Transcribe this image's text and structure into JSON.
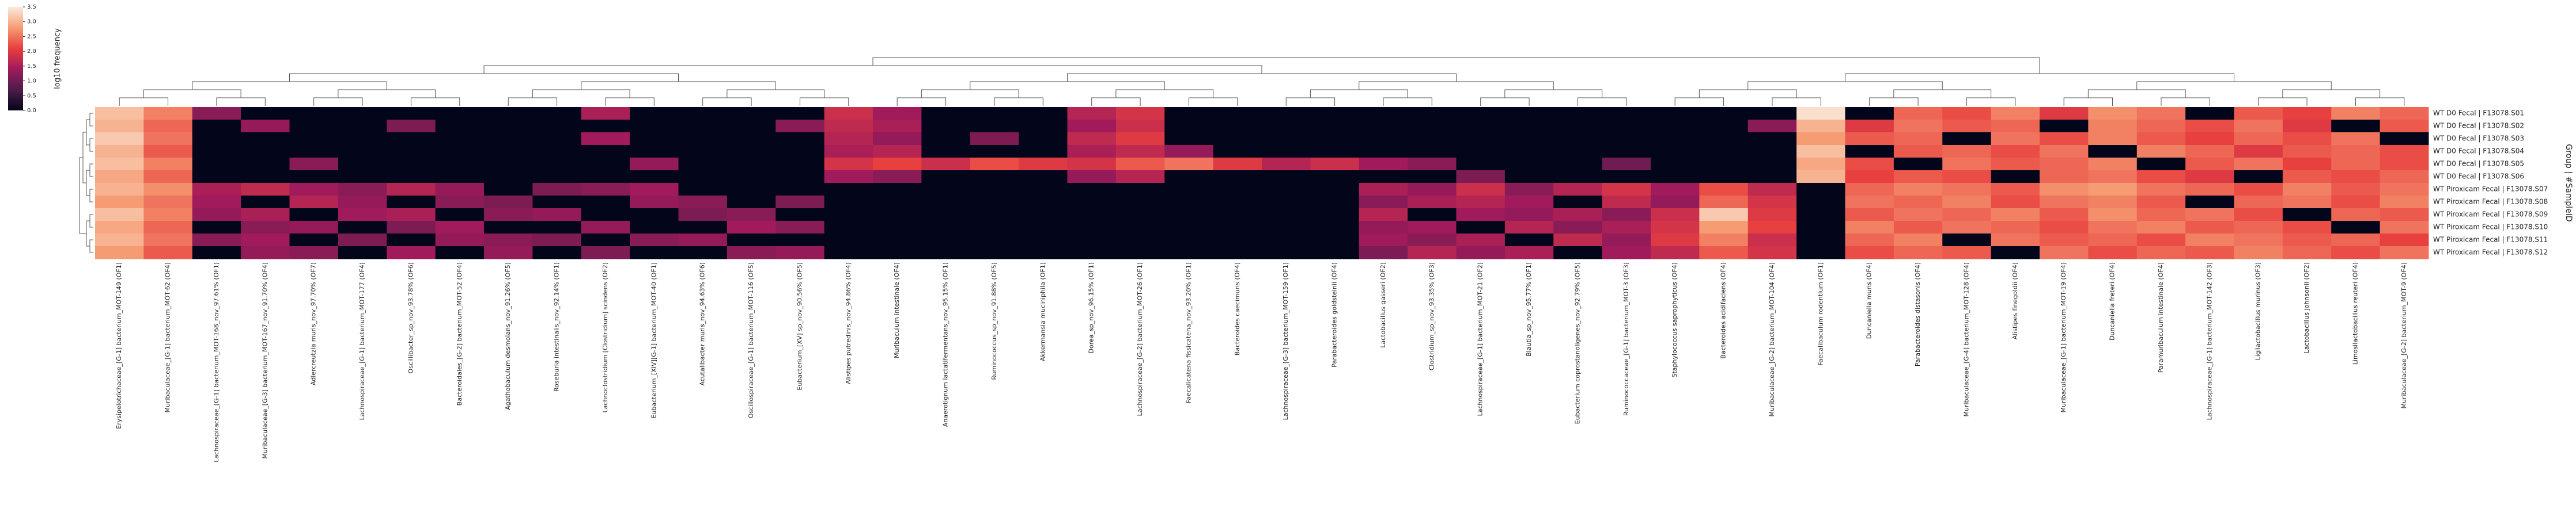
{
  "chart_data": {
    "type": "heatmap",
    "colorbar_label": "log10 frequency",
    "ylabel": "Group | #SampleID",
    "clim": [
      0,
      3.5
    ],
    "cticks": [
      {
        "value": 0,
        "label": "0.0"
      },
      {
        "value": 0.5,
        "label": "0.5"
      },
      {
        "value": 1,
        "label": "1.0"
      },
      {
        "value": 1.5,
        "label": "1.5"
      },
      {
        "value": 2,
        "label": "2.0"
      },
      {
        "value": 2.5,
        "label": "2.5"
      },
      {
        "value": 3,
        "label": "3.0"
      },
      {
        "value": 3.5,
        "label": "3.5"
      }
    ],
    "colormap": [
      "#03051a",
      "#4c1d4b",
      "#a11a5b",
      "#e83f3f",
      "#f69c73",
      "#faebdd"
    ],
    "categories": [
      "Erysipelotrichaceae_[G-1] bacterium_MOT-149 (OF1)",
      "Muribaculaceae_[G-1] bacterium_MOT-62 (OF4)",
      "Lachnospiraceae_[G-1] bacterium_MOT-168_nov_97.61% (OF1)",
      "Muribaculaceae_[G-3] bacterium_MOT-167_nov_91.70% (OF4)",
      "Adlercreutzia muris_nov_97.70% (OF7)",
      "Lachnospiraceae_[G-1] bacterium_MOT-177 (OF4)",
      "Oscillibacter_sp_nov_93.78% (OF6)",
      "Bacteroidales_[G-2] bacterium_MOT-52 (OF4)",
      "Agathobaculum desmolans_nov_91.26% (OF5)",
      "Roseburia intestinalis_nov_92.14% (OF1)",
      "Lachnoclostridium [Clostridium] scindens (OF2)",
      "Eubacterium_[XIV][G-1] bacterium_MOT-40 (OF1)",
      "Acutalibacter muris_nov_94.63% (OF6)",
      "Oscillospiraceae_[G-1] bacterium_MOT-116 (OF5)",
      "Eubacterium_[XV] sp_nov_90.56% (OF5)",
      "Alistipes putredinis_nov_94.86% (OF4)",
      "Muribaculum intestinale (OF4)",
      "Anaerotignum lactatifermentans_nov_95.15% (OF1)",
      "Ruminococcus_sp_nov_91.88% (OF5)",
      "Akkermansia muciniphila (OF1)",
      "Dorea_sp_nov_96.15% (OF1)",
      "Lachnospiraceae_[G-2] bacterium_MOT-26 (OF1)",
      "Faecalicatena fissicatena_nov_93.20% (OF1)",
      "Bacteroides caecimuris (OF4)",
      "Lachnospiraceae_[G-3] bacterium_MOT-159 (OF1)",
      "Parabacteroides goldsteinii (OF4)",
      "Lactobacillus gasseri (OF2)",
      "Clostridium_sp_nov_93.35% (OF3)",
      "Lachnospiraceae_[G-1] bacterium_MOT-21 (OF2)",
      "Blautia_sp_nov_95.77% (OF1)",
      "Eubacterium coprostanoligenes_nov_92.79% (OF5)",
      "Ruminococcaceae_[G-1] bacterium_MOT-3 (OF3)",
      "Staphylococcus saprophyticus (OF4)",
      "Bacteroides acidifaciens (OF4)",
      "Muribaculaceae_[G-2] bacterium_MOT-104 (OF4)",
      "Faecalibaculum rodentium (OF1)",
      "Duncaniella muris (OF4)",
      "Parabacteroides distasonis (OF4)",
      "Muribaculaceae_[G-4] bacterium_MOT-128 (OF4)",
      "Alistipes finegoldii (OF4)",
      "Muribaculaceae_[G-1] bacterium_MOT-19 (OF4)",
      "Duncaniella freteri (OF4)",
      "Paramuribaculum intestinale (OF4)",
      "Lachnospiraceae_[G-1] bacterium_MOT-142 (OF3)",
      "Ligilactobacillus murinus (OF3)",
      "Lactobacillus johnsonii (OF2)",
      "Limosilactobacillus reuteri (OF4)",
      "Muribaculaceae_[G-2] bacterium_MOT-9 (OF4)"
    ],
    "series": [
      {
        "name": "WT D0 Fecal | F13078.S01",
        "values": [
          3.1,
          2.6,
          1.2,
          0,
          0,
          0,
          0,
          0,
          0,
          0,
          1.5,
          0,
          0,
          0,
          0,
          1.8,
          1.4,
          0,
          0,
          0,
          1.6,
          1.9,
          0,
          0,
          0,
          0,
          0,
          0,
          0,
          0,
          0,
          0,
          0,
          0,
          0,
          3.4,
          0,
          2.4,
          2.2,
          2.6,
          2.0,
          2.7,
          2.5,
          0,
          2.3,
          2.1,
          2.6,
          2.4
        ]
      },
      {
        "name": "WT D0 Fecal | F13078.S02",
        "values": [
          3.0,
          2.4,
          0,
          1.3,
          0,
          0,
          1.1,
          0,
          0,
          0,
          0,
          0,
          0,
          0,
          1.2,
          1.7,
          1.5,
          0,
          0,
          0,
          1.4,
          1.8,
          0,
          0,
          0,
          0,
          0,
          0,
          0,
          0,
          0,
          0,
          0,
          0,
          1.2,
          3.0,
          2.0,
          2.5,
          2.3,
          2.4,
          0,
          2.6,
          2.4,
          2.2,
          2.5,
          2.0,
          0,
          2.3
        ]
      },
      {
        "name": "WT D0 Fecal | F13078.S03",
        "values": [
          3.2,
          2.5,
          0,
          0,
          0,
          0,
          0,
          0,
          0,
          0,
          1.4,
          0,
          0,
          0,
          0,
          1.6,
          1.3,
          0,
          1.1,
          0,
          1.7,
          2.0,
          0,
          0,
          0,
          0,
          0,
          0,
          0,
          0,
          0,
          0,
          0,
          0,
          0,
          2.8,
          2.3,
          2.4,
          0,
          2.5,
          2.2,
          2.6,
          2.3,
          2.1,
          2.4,
          2.2,
          2.5,
          0
        ]
      },
      {
        "name": "WT D0 Fecal | F13078.S04",
        "values": [
          3.0,
          2.3,
          0,
          0,
          0,
          0,
          0,
          0,
          0,
          0,
          0,
          0,
          0,
          0,
          0,
          1.5,
          1.6,
          0,
          0,
          0,
          1.5,
          1.7,
          1.3,
          0,
          0,
          0,
          0,
          0,
          0,
          0,
          0,
          0,
          0,
          0,
          0,
          3.1,
          0,
          2.3,
          2.4,
          2.2,
          2.5,
          0,
          2.6,
          2.4,
          2.0,
          2.3,
          2.4,
          2.2
        ]
      },
      {
        "name": "WT D0 Fecal | F13078.S05",
        "values": [
          3.1,
          2.6,
          0,
          0,
          1.2,
          0,
          0,
          0,
          0,
          0,
          0,
          1.3,
          0,
          0,
          0,
          1.9,
          2.1,
          1.8,
          2.2,
          2.0,
          1.9,
          2.3,
          2.5,
          2.0,
          1.6,
          1.8,
          1.4,
          1.2,
          0,
          0,
          0,
          1.0,
          0,
          0,
          0,
          2.9,
          2.2,
          0,
          2.5,
          2.3,
          2.4,
          2.6,
          0,
          2.3,
          2.5,
          2.1,
          2.4,
          2.2
        ]
      },
      {
        "name": "WT D0 Fecal | F13078.S06",
        "values": [
          2.9,
          2.4,
          0,
          0,
          0,
          0,
          0,
          0,
          0,
          0,
          0,
          0,
          0,
          0,
          0,
          1.4,
          1.2,
          0,
          0,
          0,
          1.3,
          1.6,
          0,
          0,
          0,
          0,
          0,
          0,
          1.1,
          0,
          0,
          0,
          0,
          0,
          0,
          3.0,
          2.1,
          2.3,
          2.2,
          0,
          2.4,
          2.5,
          2.2,
          2.0,
          0,
          2.3,
          2.2,
          2.4
        ]
      },
      {
        "name": "WT Piroxicam Fecal | F13078.S07",
        "values": [
          3.0,
          2.7,
          1.5,
          1.7,
          1.4,
          1.2,
          1.6,
          1.3,
          0,
          1.1,
          1.2,
          1.4,
          0,
          0,
          0,
          0,
          0,
          0,
          0,
          0,
          0,
          0,
          0,
          0,
          0,
          0,
          1.5,
          1.3,
          1.8,
          1.2,
          1.6,
          1.9,
          1.4,
          2.2,
          1.7,
          0,
          2.4,
          2.6,
          2.5,
          2.3,
          2.7,
          2.8,
          2.5,
          2.4,
          2.2,
          2.6,
          2.3,
          2.5
        ]
      },
      {
        "name": "WT Piroxicam Fecal | F13078.S08",
        "values": [
          2.8,
          2.5,
          1.4,
          0,
          1.6,
          1.3,
          0,
          1.2,
          1.1,
          0,
          0,
          1.3,
          1.2,
          0,
          1.1,
          0,
          0,
          0,
          0,
          0,
          0,
          0,
          0,
          0,
          0,
          0,
          1.2,
          1.5,
          1.6,
          1.4,
          0,
          1.7,
          1.3,
          2.4,
          1.9,
          0,
          2.5,
          2.4,
          2.6,
          2.2,
          2.5,
          2.6,
          2.3,
          0,
          2.4,
          2.5,
          2.2,
          2.6
        ]
      },
      {
        "name": "WT Piroxicam Fecal | F13078.S09",
        "values": [
          3.1,
          2.6,
          1.3,
          1.5,
          0,
          1.4,
          1.5,
          0,
          1.2,
          1.3,
          0,
          0,
          1.1,
          1.2,
          0,
          0,
          0,
          0,
          0,
          0,
          0,
          0,
          0,
          0,
          0,
          0,
          1.6,
          0,
          1.4,
          1.3,
          1.5,
          1.2,
          1.8,
          3.2,
          2.0,
          0,
          2.3,
          2.5,
          2.4,
          2.6,
          2.3,
          2.7,
          2.4,
          2.5,
          2.2,
          0,
          2.4,
          2.3
        ]
      },
      {
        "name": "WT Piroxicam Fecal | F13078.S10",
        "values": [
          2.9,
          2.4,
          0,
          1.2,
          1.3,
          0,
          1.1,
          1.4,
          0,
          0,
          1.3,
          0,
          0,
          1.4,
          1.2,
          0,
          0,
          0,
          0,
          0,
          0,
          0,
          0,
          0,
          0,
          0,
          1.3,
          1.4,
          0,
          1.6,
          1.2,
          1.5,
          1.9,
          2.8,
          2.1,
          0,
          2.6,
          2.3,
          2.5,
          2.4,
          2.2,
          2.5,
          2.6,
          2.3,
          2.4,
          2.2,
          0,
          2.5
        ]
      },
      {
        "name": "WT Piroxicam Fecal | F13078.S11",
        "values": [
          3.0,
          2.5,
          1.2,
          1.4,
          0,
          1.1,
          0,
          1.3,
          1.2,
          1.1,
          0,
          1.2,
          1.3,
          0,
          0,
          0,
          0,
          0,
          0,
          0,
          0,
          0,
          0,
          0,
          0,
          0,
          1.4,
          1.2,
          1.5,
          0,
          1.7,
          1.3,
          2.0,
          2.6,
          1.8,
          0,
          2.4,
          2.6,
          0,
          2.5,
          2.3,
          2.4,
          2.2,
          2.6,
          2.5,
          2.3,
          2.4,
          2.1
        ]
      },
      {
        "name": "WT Piroxicam Fecal | F13078.S12",
        "values": [
          2.8,
          2.3,
          0,
          1.3,
          1.2,
          0,
          1.4,
          0,
          1.3,
          0,
          1.1,
          0,
          0,
          1.2,
          1.3,
          0,
          0,
          0,
          0,
          0,
          0,
          0,
          0,
          0,
          0,
          0,
          1.1,
          1.6,
          1.3,
          1.5,
          0,
          1.4,
          1.7,
          2.3,
          1.9,
          0,
          2.2,
          2.4,
          2.3,
          0,
          2.5,
          2.2,
          2.4,
          2.3,
          2.6,
          2.4,
          2.2,
          2.5
        ]
      }
    ]
  }
}
